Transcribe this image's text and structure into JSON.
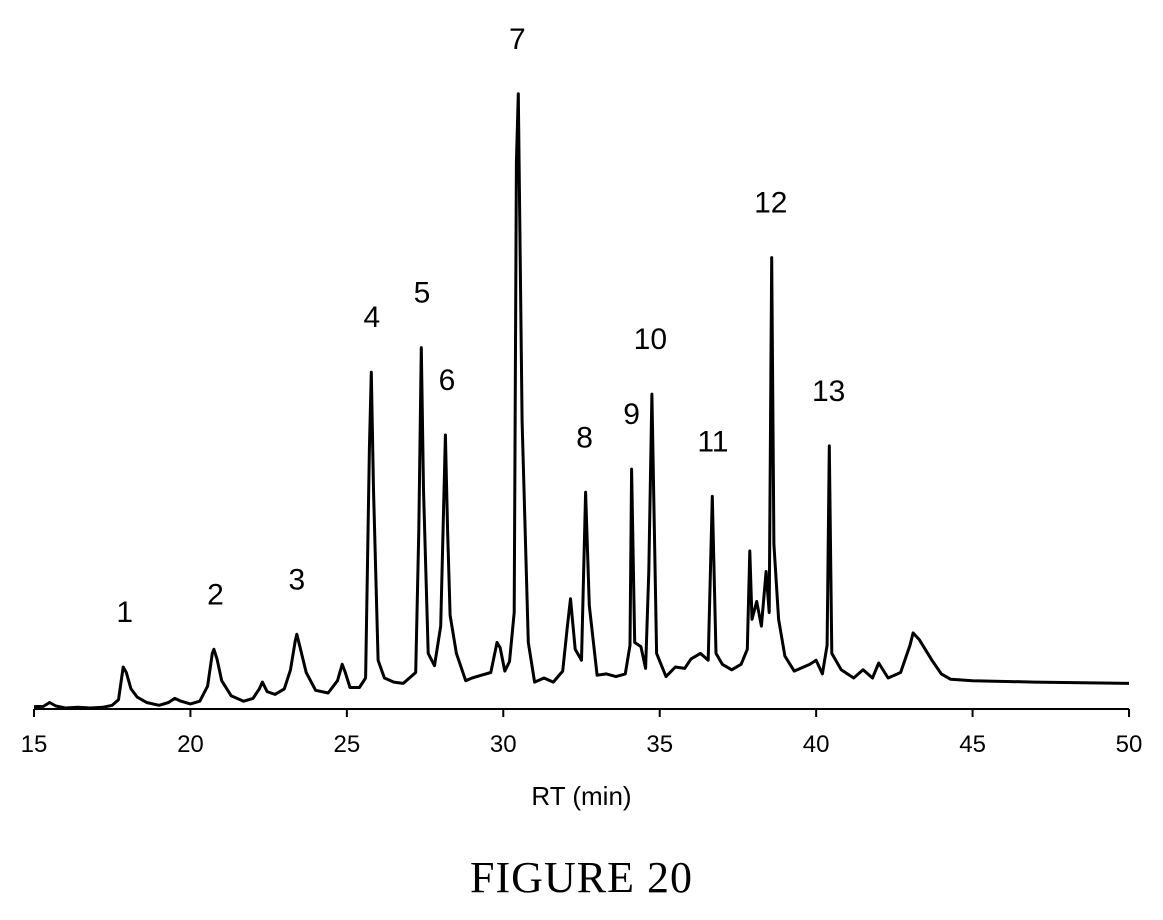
{
  "chart_data": {
    "type": "line",
    "xlabel": "RT (min)",
    "ylabel": "",
    "xlim": [
      15,
      50
    ],
    "xticks": [
      15,
      20,
      25,
      30,
      35,
      40,
      45,
      50
    ],
    "y_axis_visible": false,
    "grid": false,
    "legend": "none",
    "line_color": "#000000",
    "series": [
      {
        "x": [
          15.0,
          15.3,
          15.5,
          15.7,
          16.0,
          16.4,
          16.8,
          17.2,
          17.5,
          17.7,
          17.85,
          17.95,
          18.1,
          18.3,
          18.6,
          19.0,
          19.3,
          19.5,
          19.7,
          20.0,
          20.3,
          20.55,
          20.7,
          20.75,
          20.85,
          21.0,
          21.3,
          21.7,
          22.0,
          22.2,
          22.3,
          22.45,
          22.7,
          23.0,
          23.2,
          23.35,
          23.4,
          23.5,
          23.7,
          24.0,
          24.4,
          24.7,
          24.85,
          24.95,
          25.1,
          25.4,
          25.6,
          25.72,
          25.78,
          25.85,
          26.0,
          26.2,
          26.5,
          26.8,
          27.0,
          27.2,
          27.3,
          27.38,
          27.45,
          27.6,
          27.8,
          28.0,
          28.15,
          28.22,
          28.3,
          28.5,
          28.8,
          29.0,
          29.3,
          29.6,
          29.8,
          29.9,
          30.05,
          30.2,
          30.35,
          30.42,
          30.48,
          30.6,
          30.8,
          31.0,
          31.3,
          31.6,
          31.9,
          32.05,
          32.15,
          32.3,
          32.5,
          32.63,
          32.75,
          33.0,
          33.3,
          33.6,
          33.9,
          34.05,
          34.1,
          34.2,
          34.4,
          34.55,
          34.65,
          34.75,
          34.9,
          35.2,
          35.5,
          35.8,
          36.0,
          36.3,
          36.55,
          36.68,
          36.8,
          37.0,
          37.3,
          37.6,
          37.8,
          37.88,
          37.95,
          38.1,
          38.25,
          38.4,
          38.5,
          38.58,
          38.65,
          38.8,
          39.0,
          39.3,
          39.6,
          39.8,
          40.0,
          40.2,
          40.35,
          40.42,
          40.5,
          40.8,
          41.2,
          41.5,
          41.8,
          42.0,
          42.3,
          42.7,
          43.0,
          43.1,
          43.3,
          43.7,
          44.0,
          44.3,
          45.0,
          47.0,
          50.0
        ],
        "y": [
          1.0,
          1.2,
          4.0,
          1.5,
          0.0,
          0.5,
          0.0,
          0.5,
          2.0,
          6.0,
          30.0,
          26.0,
          14.0,
          8.0,
          4.0,
          2.0,
          4.0,
          7.0,
          5.0,
          3.0,
          5.0,
          16.0,
          40.0,
          43.0,
          36.0,
          20.0,
          9.0,
          5.0,
          7.0,
          14.0,
          19.0,
          12.0,
          10.0,
          14.0,
          28.0,
          49.0,
          54.0,
          45.0,
          26.0,
          13.0,
          11.0,
          20.0,
          32.0,
          26.0,
          15.0,
          15.0,
          22.0,
          190.0,
          246.0,
          160.0,
          35.0,
          22.0,
          19.0,
          18.0,
          22.0,
          26.0,
          130.0,
          264.0,
          160.0,
          40.0,
          31.0,
          60.0,
          200.0,
          130.0,
          68.0,
          40.0,
          20.0,
          22.0,
          24.0,
          26.0,
          48.0,
          44.0,
          27.0,
          34.0,
          70.0,
          400.0,
          450.0,
          210.0,
          48.0,
          19.0,
          22.0,
          19.0,
          27.0,
          60.0,
          80.0,
          43.0,
          35.0,
          158.0,
          75.0,
          24.0,
          25.0,
          23.0,
          25.0,
          46.0,
          175.0,
          48.0,
          45.0,
          29.0,
          100.0,
          230.0,
          40.0,
          23.0,
          30.0,
          29.0,
          36.0,
          40.0,
          35.0,
          155.0,
          40.0,
          32.0,
          28.0,
          32.0,
          43.0,
          115.0,
          65.0,
          78.0,
          60.0,
          100.0,
          70.0,
          330.0,
          120.0,
          65.0,
          38.0,
          27.0,
          30.0,
          32.0,
          35.0,
          25.0,
          46.0,
          192.0,
          40.0,
          28.0,
          22.0,
          28.0,
          22.0,
          33.0,
          22.0,
          26.0,
          46.0,
          55.0,
          50.0,
          35.0,
          25.0,
          21.0,
          20.0,
          19.0,
          18.0
        ]
      }
    ],
    "annotations": [
      {
        "text": "1",
        "x": 17.9,
        "y": 30
      },
      {
        "text": "2",
        "x": 20.8,
        "y": 43
      },
      {
        "text": "3",
        "x": 23.4,
        "y": 54
      },
      {
        "text": "4",
        "x": 25.8,
        "y": 246
      },
      {
        "text": "5",
        "x": 27.4,
        "y": 264
      },
      {
        "text": "6",
        "x": 28.2,
        "y": 200
      },
      {
        "text": "7",
        "x": 30.45,
        "y": 450
      },
      {
        "text": "8",
        "x": 32.6,
        "y": 158
      },
      {
        "text": "9",
        "x": 34.1,
        "y": 175
      },
      {
        "text": "10",
        "x": 34.7,
        "y": 230
      },
      {
        "text": "11",
        "x": 36.7,
        "y": 155
      },
      {
        "text": "12",
        "x": 38.55,
        "y": 330
      },
      {
        "text": "13",
        "x": 40.4,
        "y": 192
      }
    ]
  },
  "caption": "FIGURE 20"
}
